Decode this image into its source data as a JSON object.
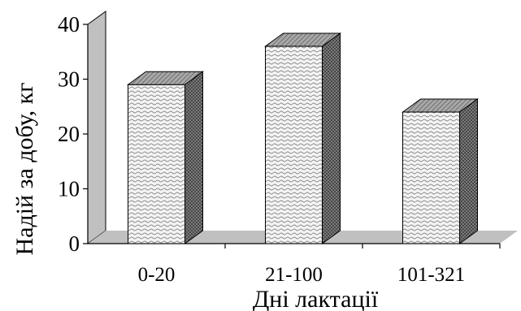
{
  "chart_data": {
    "type": "bar",
    "three_d": true,
    "categories": [
      "0-20",
      "21-100",
      "101-321"
    ],
    "values": [
      29,
      36,
      24
    ],
    "xlabel": "Дні лактації",
    "ylabel": "Надій за добу, кг",
    "ylim": [
      0,
      40
    ],
    "yticks": [
      "0",
      "10",
      "20",
      "30",
      "40"
    ],
    "grid": false,
    "legend": "none",
    "colors": {
      "wall": "#c0c0c0",
      "floor": "#c0c0c0",
      "bar_front_fill": "#f4f4f4",
      "bar_pattern": "#8a8a8a",
      "bar_top": "#9a9a9a",
      "bar_side": "#7a7a7a",
      "outline": "#000000"
    }
  }
}
